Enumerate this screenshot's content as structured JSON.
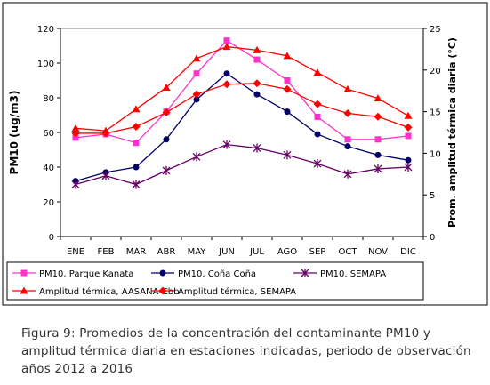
{
  "chart_data": {
    "type": "line",
    "categories": [
      "ENE",
      "FEB",
      "MAR",
      "ABR",
      "MAY",
      "JUN",
      "JUL",
      "AGO",
      "SEP",
      "OCT",
      "NOV",
      "DIC"
    ],
    "ylabel": "PM10 (ug/m3)",
    "y2label": "Prom. amplitud térmica diaria (°C)",
    "ylim": [
      0,
      120
    ],
    "y2lim": [
      0,
      25
    ],
    "yticks": [
      "0",
      "20",
      "40",
      "60",
      "80",
      "100",
      "120"
    ],
    "y2ticks": [
      "0",
      "5",
      "10",
      "15",
      "20",
      "25"
    ],
    "grid": false,
    "legend_position": "bottom",
    "series": [
      {
        "name": "PM10, Parque Kanata",
        "axis": "left",
        "color": "#ff33cc",
        "marker": "square",
        "values": [
          57,
          59,
          54,
          72,
          94,
          113,
          102,
          90,
          69,
          56,
          56,
          58
        ]
      },
      {
        "name": "PM10, Coña Coña",
        "axis": "left",
        "color": "#000066",
        "marker": "circle",
        "values": [
          32,
          37,
          40,
          56,
          79,
          94,
          82,
          72,
          59,
          52,
          47,
          44
        ]
      },
      {
        "name": "PM10. SEMAPA",
        "axis": "left",
        "color": "#660066",
        "marker": "star",
        "values": [
          30,
          35,
          30,
          38,
          46,
          53,
          51,
          47,
          42,
          36,
          39,
          40
        ]
      },
      {
        "name": "Amplitud térmica, AASANA-Cbb",
        "axis": "right",
        "color": "#ff0000",
        "marker": "triangle",
        "values": [
          13.0,
          12.7,
          15.3,
          17.9,
          21.4,
          22.8,
          22.4,
          21.7,
          19.7,
          17.7,
          16.6,
          14.5
        ]
      },
      {
        "name": "Amplitud térmica, SEMAPA",
        "axis": "right",
        "color": "#ff0000",
        "marker": "diamond",
        "values": [
          12.4,
          12.4,
          13.2,
          14.9,
          17.1,
          18.3,
          18.4,
          17.7,
          15.9,
          14.8,
          14.4,
          13.1
        ]
      }
    ]
  },
  "caption": "Figura 9: Promedios de la concentración del contaminante PM10 y amplitud térmica diaria en estaciones indicadas, periodo de observación años 2012 a 2016"
}
